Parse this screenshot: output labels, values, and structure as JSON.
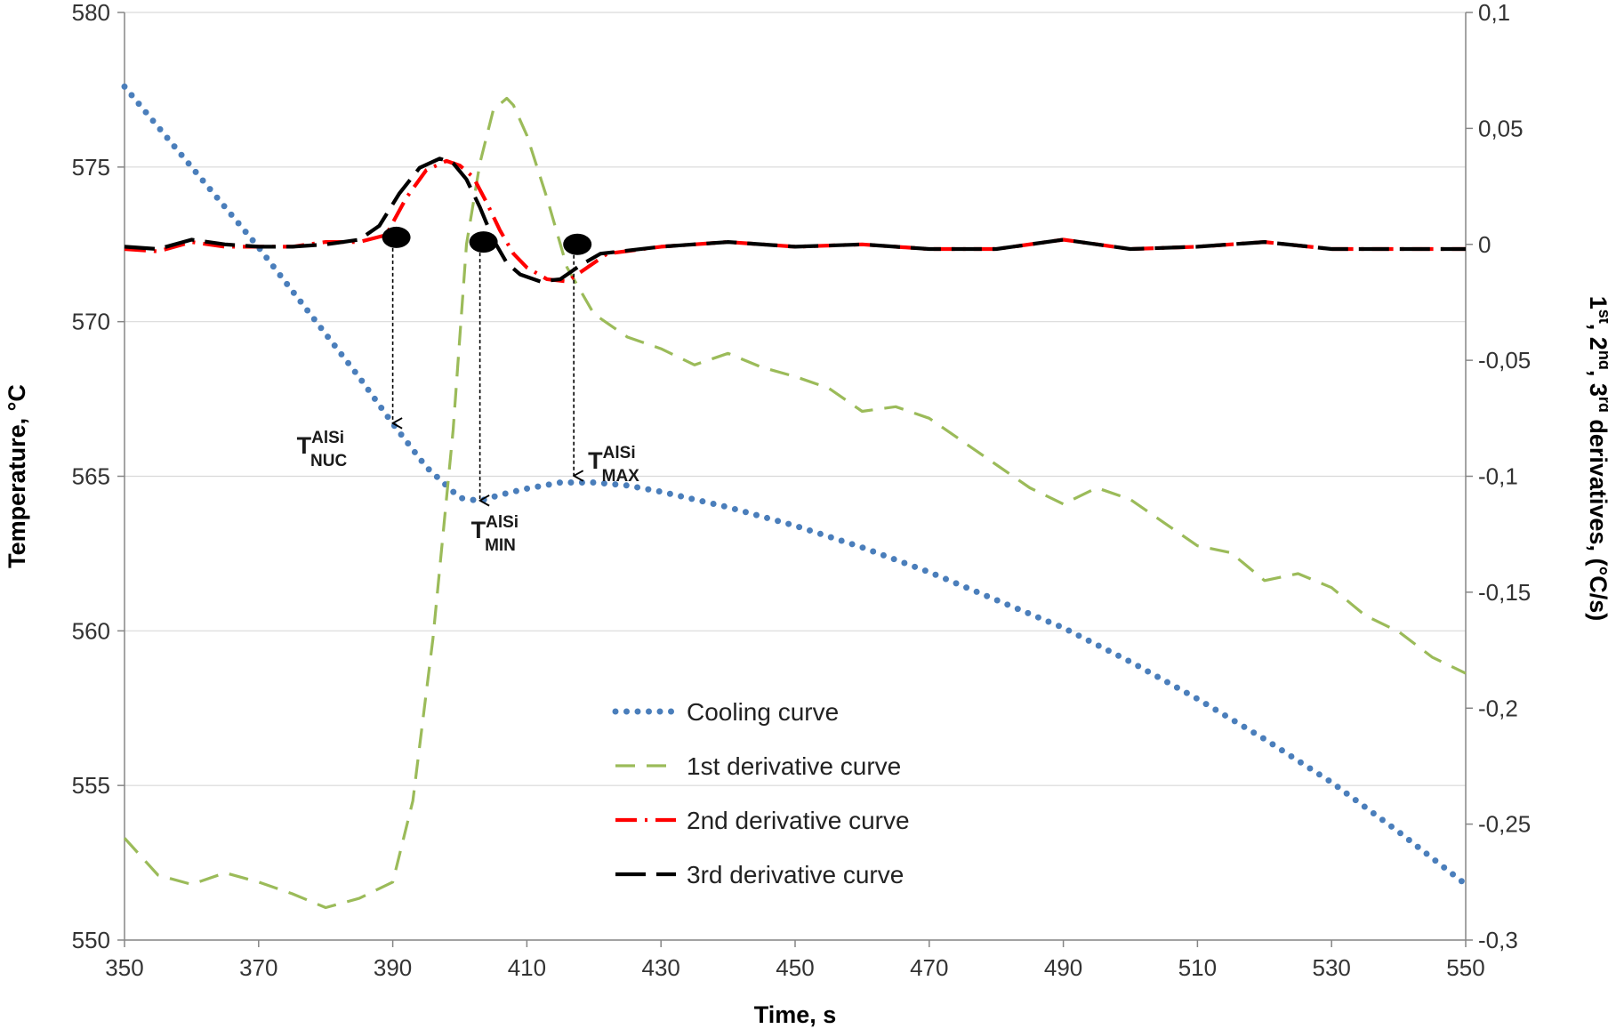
{
  "chart_data": {
    "type": "line",
    "x_axis": {
      "label": "Time, s",
      "range": [
        350,
        550
      ],
      "ticks": [
        "350",
        "370",
        "390",
        "410",
        "430",
        "450",
        "470",
        "490",
        "510",
        "530",
        "550"
      ]
    },
    "y_axis_left": {
      "label": "Temperature, °C",
      "range": [
        550,
        580
      ],
      "ticks": [
        "550",
        "555",
        "560",
        "565",
        "570",
        "575",
        "580"
      ]
    },
    "y_axis_right": {
      "label_parts": [
        "1",
        "st",
        ", 2",
        "nd",
        ", 3",
        "rd",
        " derivatives, (°C/s)"
      ],
      "range": [
        -0.3,
        0.1
      ],
      "ticks": [
        "-0,3",
        "-0,25",
        "-0,2",
        "-0,15",
        "-0,1",
        "-0,05",
        "0",
        "0,05",
        "0,1"
      ]
    },
    "grid": "horizontal",
    "legend_position": "bottom-center",
    "series": [
      {
        "name": "Cooling curve",
        "axis": "left",
        "color": "#4a7ebb",
        "style": "dotted",
        "x": [
          350,
          360,
          370,
          380,
          385,
          390,
          395,
          400,
          403,
          406,
          410,
          415,
          418,
          420,
          425,
          430,
          440,
          450,
          460,
          470,
          480,
          490,
          500,
          510,
          520,
          530,
          540,
          550
        ],
        "y": [
          577.6,
          575.0,
          572.4,
          569.6,
          568.2,
          566.7,
          565.3,
          564.3,
          564.2,
          564.4,
          564.6,
          564.8,
          564.8,
          564.8,
          564.7,
          564.5,
          564.0,
          563.4,
          562.7,
          561.9,
          561.0,
          560.1,
          559.0,
          557.8,
          556.5,
          555.1,
          553.5,
          551.8
        ]
      },
      {
        "name": "1st derivative curve",
        "axis": "right",
        "color": "#9bbb59",
        "style": "dashed",
        "x": [
          350,
          355,
          360,
          365,
          370,
          375,
          380,
          385,
          390,
          393,
          396,
          399,
          401,
          403,
          405,
          407,
          408,
          410,
          413,
          416,
          420,
          425,
          430,
          435,
          440,
          445,
          450,
          455,
          460,
          465,
          470,
          475,
          480,
          485,
          490,
          495,
          500,
          505,
          510,
          515,
          520,
          525,
          530,
          535,
          540,
          545,
          550
        ],
        "y": [
          -0.256,
          -0.272,
          -0.276,
          -0.271,
          -0.275,
          -0.28,
          -0.286,
          -0.282,
          -0.275,
          -0.24,
          -0.17,
          -0.08,
          0.0,
          0.035,
          0.058,
          0.063,
          0.06,
          0.047,
          0.02,
          -0.01,
          -0.03,
          -0.04,
          -0.045,
          -0.052,
          -0.047,
          -0.053,
          -0.057,
          -0.062,
          -0.072,
          -0.07,
          -0.075,
          -0.085,
          -0.095,
          -0.105,
          -0.112,
          -0.105,
          -0.11,
          -0.12,
          -0.13,
          -0.133,
          -0.145,
          -0.142,
          -0.148,
          -0.16,
          -0.167,
          -0.178,
          -0.185
        ]
      },
      {
        "name": "2nd derivative curve",
        "axis": "right",
        "color": "#ff0000",
        "style": "dash-dot",
        "x": [
          350,
          355,
          360,
          365,
          370,
          375,
          380,
          385,
          389,
          392,
          395,
          398,
          400,
          402,
          404,
          406,
          408,
          410,
          413,
          416,
          419,
          422,
          430,
          440,
          450,
          460,
          470,
          480,
          490,
          500,
          510,
          520,
          530,
          540,
          550
        ],
        "y": [
          -0.002,
          -0.003,
          0.001,
          -0.001,
          -0.001,
          -0.001,
          0.001,
          0.001,
          0.004,
          0.02,
          0.032,
          0.036,
          0.034,
          0.029,
          0.018,
          0.006,
          -0.004,
          -0.01,
          -0.015,
          -0.016,
          -0.01,
          -0.004,
          -0.001,
          0.001,
          -0.001,
          0.0,
          -0.002,
          -0.002,
          0.002,
          -0.002,
          -0.001,
          0.001,
          -0.002,
          -0.002,
          -0.002
        ]
      },
      {
        "name": "3rd derivative curve",
        "axis": "right",
        "color": "#000000",
        "style": "long-dash",
        "x": [
          350,
          355,
          360,
          365,
          370,
          375,
          380,
          385,
          388,
          391,
          394,
          397,
          399,
          401,
          403,
          405,
          407,
          409,
          412,
          415,
          418,
          421,
          430,
          440,
          450,
          460,
          470,
          480,
          490,
          500,
          510,
          520,
          530,
          540,
          550
        ],
        "y": [
          -0.001,
          -0.002,
          0.002,
          0.0,
          -0.001,
          -0.001,
          0.0,
          0.002,
          0.008,
          0.022,
          0.033,
          0.037,
          0.035,
          0.028,
          0.016,
          0.002,
          -0.008,
          -0.013,
          -0.016,
          -0.015,
          -0.009,
          -0.004,
          -0.001,
          0.001,
          -0.001,
          0.0,
          -0.002,
          -0.002,
          0.002,
          -0.002,
          -0.001,
          0.001,
          -0.002,
          -0.002,
          -0.002
        ]
      }
    ],
    "markers": [
      {
        "x": 390,
        "y_right": 0.003
      },
      {
        "x": 403,
        "y_right": 0.001
      },
      {
        "x": 417,
        "y_right": 0.0
      }
    ],
    "annotations": [
      {
        "main": "T",
        "sup": "AlSi",
        "sub": "NUC",
        "x": 390,
        "y": 566.6,
        "arrow_from_right": 0.0
      },
      {
        "main": "T",
        "sup": "AlSi",
        "sub": "MIN",
        "x": 403,
        "y": 564.1,
        "arrow_from_right": 0.0
      },
      {
        "main": "T",
        "sup": "AlSi",
        "sub": "MAX",
        "x": 417,
        "y": 564.9,
        "arrow_from_right": 0.0
      }
    ]
  }
}
